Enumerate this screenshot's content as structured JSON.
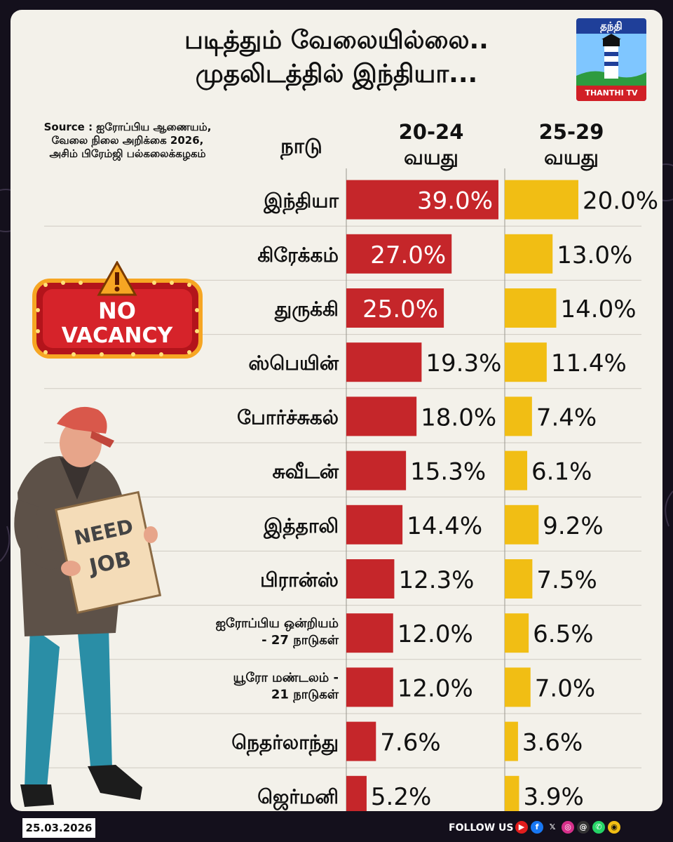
{
  "title": {
    "line1": "படித்தும் வேலையில்லை..",
    "line2": "முதலிடத்தில் இந்தியா..."
  },
  "logo": {
    "top_text": "தந்தி",
    "bottom_text": "THANTHI TV"
  },
  "source": "Source : ஐரோப்பிய ஆணையம், வேலை நிலை அறிக்கை 2026, அசிம் பிரேம்ஜி பல்கலைக்கழகம்",
  "headers": {
    "country": "நாடு",
    "group1_line1": "20-24",
    "group1_line2": "வயது",
    "group2_line1": "25-29",
    "group2_line2": "வயது"
  },
  "badge": {
    "line1": "NO",
    "line2": "VACANCY"
  },
  "sign": {
    "line1": "NEED",
    "line2": "JOB"
  },
  "footer": {
    "date": "25.03.2026",
    "follow": "FOLLOW US"
  },
  "colors": {
    "red": "#c5262a",
    "yellow": "#f1be14",
    "title": "#111111"
  },
  "chart_data": {
    "type": "bar",
    "orientation": "horizontal",
    "categories": [
      [
        "இந்தியா"
      ],
      [
        "கிரேக்கம்"
      ],
      [
        "துருக்கி"
      ],
      [
        "ஸ்பெயின்"
      ],
      [
        "போர்ச்சுகல்"
      ],
      [
        "சுவீடன்"
      ],
      [
        "இத்தாலி"
      ],
      [
        "பிரான்ஸ்"
      ],
      [
        "ஐரோப்பிய ஒன்றியம்",
        "- 27 நாடுகள்"
      ],
      [
        "யூரோ மண்டலம் -",
        "21 நாடுகள்"
      ],
      [
        "நெதர்லாந்து"
      ],
      [
        "ஜெர்மனி"
      ]
    ],
    "series": [
      {
        "name": "20-24 வயது",
        "values": [
          39.0,
          27.0,
          25.0,
          19.3,
          18.0,
          15.3,
          14.4,
          12.3,
          12.0,
          12.0,
          7.6,
          5.2
        ],
        "labels": [
          "39.0%",
          "27.0%",
          "25.0%",
          "19.3%",
          "18.0%",
          "15.3%",
          "14.4%",
          "12.3%",
          "12.0%",
          "12.0%",
          "7.6%",
          "5.2%"
        ],
        "ticks": [
          0,
          10,
          20,
          30
        ],
        "xlim": [
          0,
          39.0
        ]
      },
      {
        "name": "25-29 வயது",
        "values": [
          20.0,
          13.0,
          14.0,
          11.4,
          7.4,
          6.1,
          9.2,
          7.5,
          6.5,
          7.0,
          3.6,
          3.9
        ],
        "labels": [
          "20.0%",
          "13.0%",
          "14.0%",
          "11.4%",
          "7.4%",
          "6.1%",
          "9.2%",
          "7.5%",
          "6.5%",
          "7.0%",
          "3.6%",
          "3.9%"
        ],
        "ticks": [
          0,
          10,
          20
        ],
        "xlim": [
          0,
          20.0
        ]
      }
    ]
  }
}
